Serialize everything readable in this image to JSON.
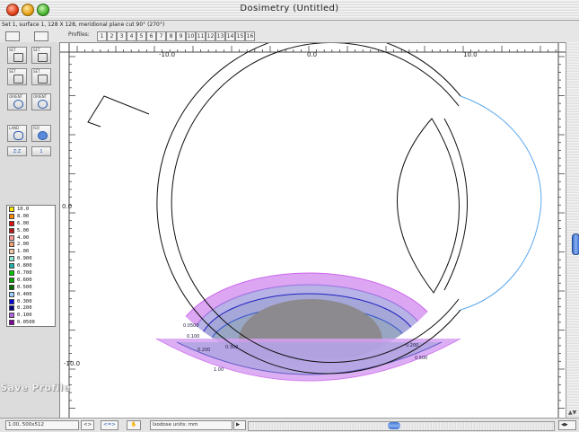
{
  "window": {
    "title": "Dosimetry (Untitled)"
  },
  "info_bar": "Set 1, surface 1, 128 X 128, meridional plane cut 90° (270°)",
  "toolbar": {
    "profiles_label": "Profiles:",
    "profile_numbers": [
      "1",
      "2",
      "3",
      "4",
      "5",
      "6",
      "7",
      "8",
      "9",
      "10",
      "11",
      "12",
      "13",
      "14",
      "15",
      "16"
    ]
  },
  "palette": {
    "buttons": [
      {
        "tag": "SET",
        "icon": "set-grid-icon"
      },
      {
        "tag": "SET",
        "icon": "set-grid-icon"
      },
      {
        "tag": "SET",
        "icon": "set-grid-icon"
      },
      {
        "tag": "SET",
        "icon": "set-grid-icon"
      },
      {
        "tag": "ORIENT",
        "icon": "orient-icon"
      },
      {
        "tag": "ORIENT",
        "icon": "orient-icon"
      },
      {
        "tag": "LAND",
        "icon": "land-icon"
      },
      {
        "tag": "ISO",
        "icon": "iso-icon"
      }
    ],
    "small_buttons": [
      "Z:Z",
      "1"
    ]
  },
  "legend": {
    "items": [
      {
        "label": "10.0",
        "color": "#ffe600"
      },
      {
        "label": "8.00",
        "color": "#ff8c00"
      },
      {
        "label": "6.00",
        "color": "#e01010"
      },
      {
        "label": "5.00",
        "color": "#b81818"
      },
      {
        "label": "4.00",
        "color": "#ff9a9a"
      },
      {
        "label": "2.00",
        "color": "#f2a070"
      },
      {
        "label": "1.00",
        "color": "#f8c8a0"
      },
      {
        "label": "0.900",
        "color": "#8ee8d8"
      },
      {
        "label": "0.800",
        "color": "#20b0a8"
      },
      {
        "label": "0.700",
        "color": "#00c800"
      },
      {
        "label": "0.600",
        "color": "#00a000"
      },
      {
        "label": "0.500",
        "color": "#006a00"
      },
      {
        "label": "0.400",
        "color": "#9ad0ff"
      },
      {
        "label": "0.300",
        "color": "#0000d8"
      },
      {
        "label": "0.200",
        "color": "#000080"
      },
      {
        "label": "0.100",
        "color": "#b060e0"
      },
      {
        "label": "0.0500",
        "color": "#8000a0"
      }
    ]
  },
  "axes": {
    "x_labels": [
      "-10.0",
      "0.0",
      "10.0"
    ],
    "y_labels": [
      "0.0",
      "-10.0"
    ]
  },
  "isodose_labels": [
    "1.00",
    "0.500",
    "0.300",
    "0.200",
    "0.100",
    "0.0500"
  ],
  "status": {
    "zoom": "1.00, 500x512",
    "field1": "<>",
    "field2": "<=>",
    "dose_units": "Isodose units: mm",
    "arrow": "▶"
  },
  "overlay_text": "Save Profile",
  "colors": {
    "iso_005": "#cc66ee",
    "iso_010": "#9a70e0",
    "iso_020": "#2020c0",
    "iso_030": "#3050d0",
    "iso_050": "#20a020",
    "iso_100": "#00c8c8",
    "sclera": "#111111",
    "cornea": "#5aa8f0"
  }
}
